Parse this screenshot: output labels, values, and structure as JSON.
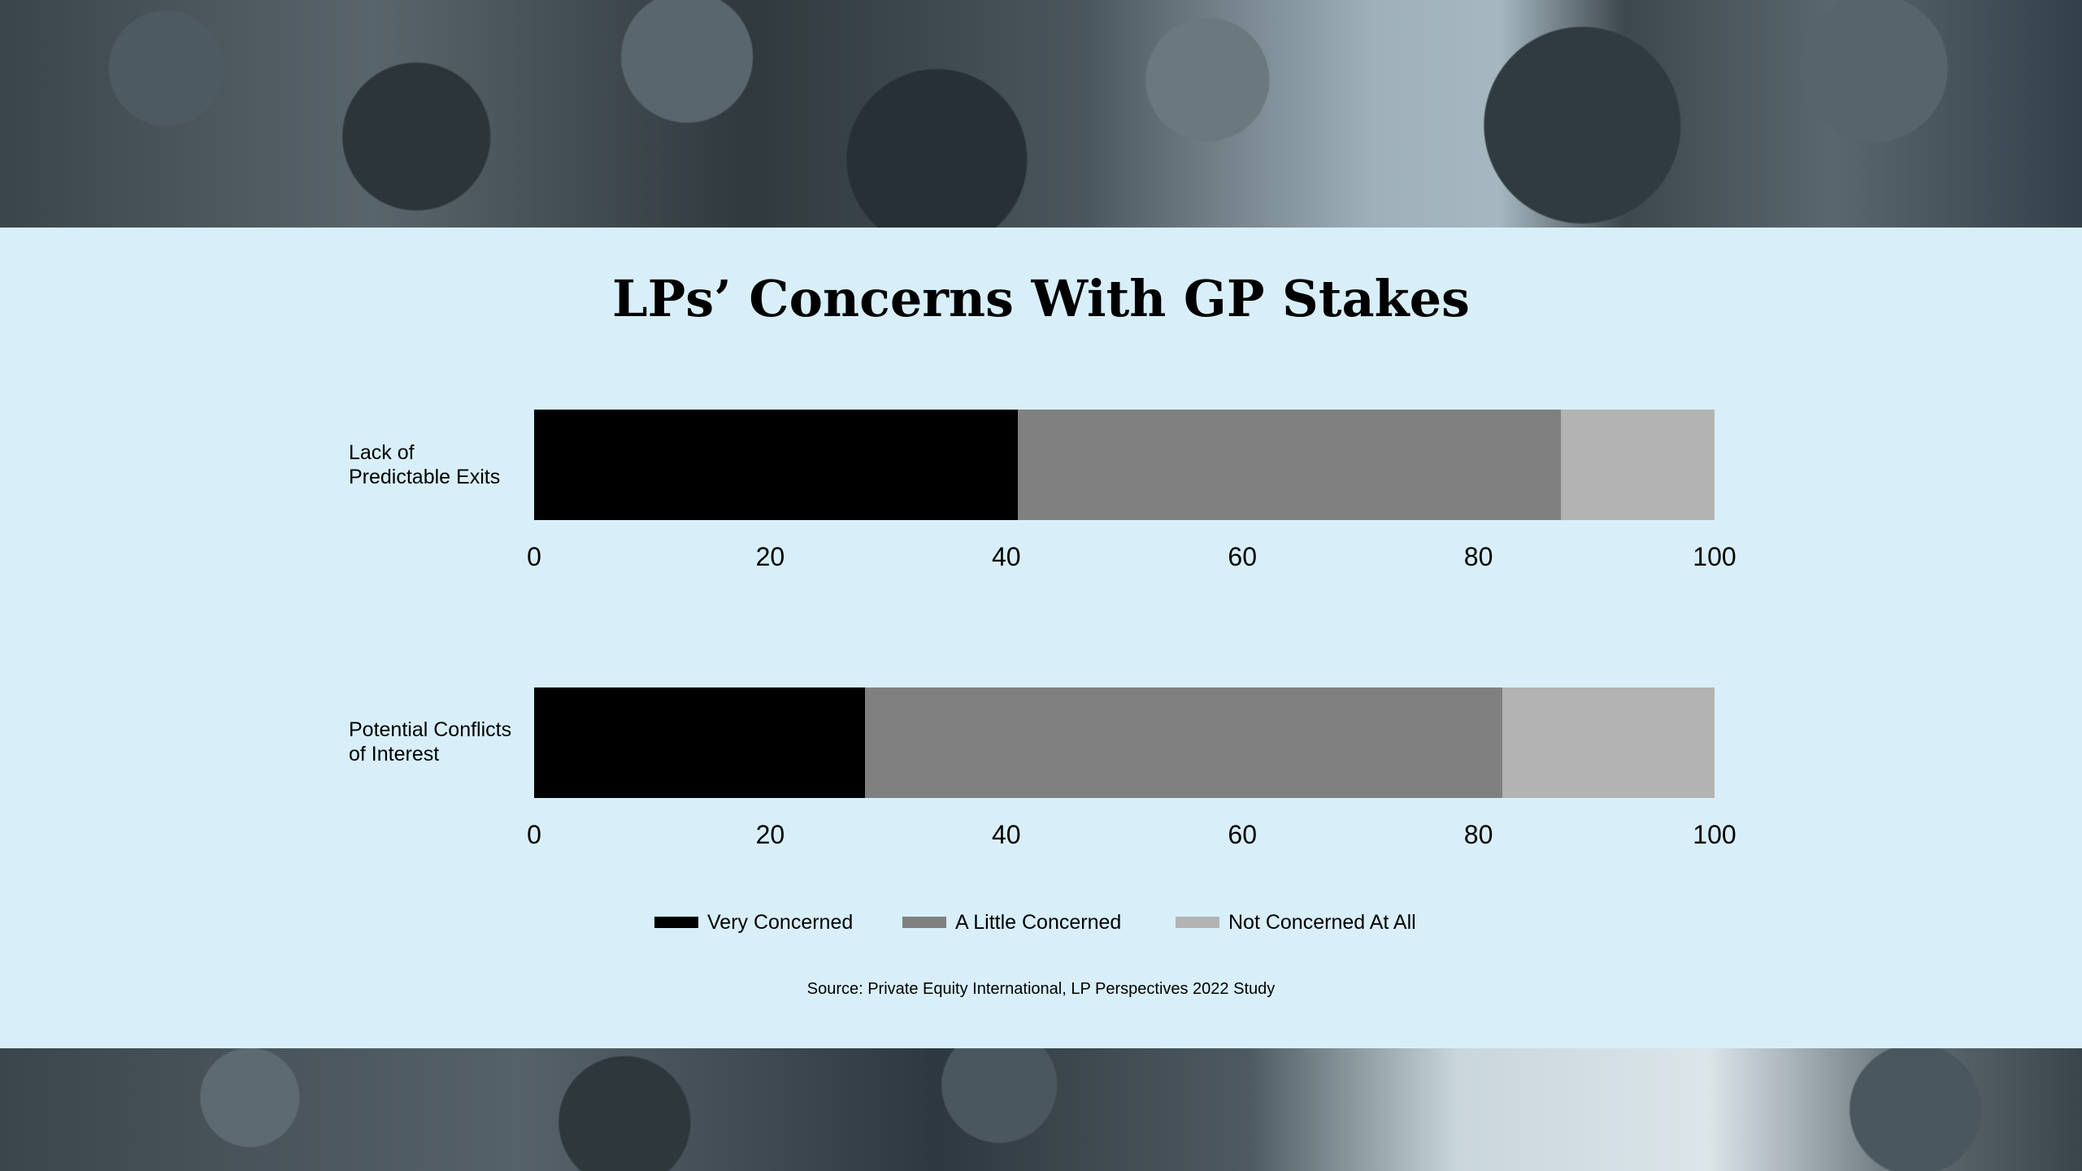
{
  "chart_data": {
    "type": "bar",
    "orientation": "horizontal",
    "stacked": true,
    "title": "LPs’ Concerns With GP Stakes",
    "categories": [
      "Lack of\nPredictable Exits",
      "Potential Conflicts\nof Interest"
    ],
    "series": [
      {
        "name": "Very Concerned",
        "color": "#000000",
        "values": [
          41,
          28
        ]
      },
      {
        "name": "A Little Concerned",
        "color": "#808080",
        "values": [
          46,
          54
        ]
      },
      {
        "name": "Not Concerned At All",
        "color": "#b3b3b3",
        "values": [
          13,
          18
        ]
      }
    ],
    "xlim": [
      0,
      100
    ],
    "xticks": [
      "0",
      "20",
      "40",
      "60",
      "80",
      "100"
    ],
    "legend_position": "bottom",
    "grid": false,
    "source": "Source: Private Equity International, LP Perspectives 2022 Study"
  }
}
